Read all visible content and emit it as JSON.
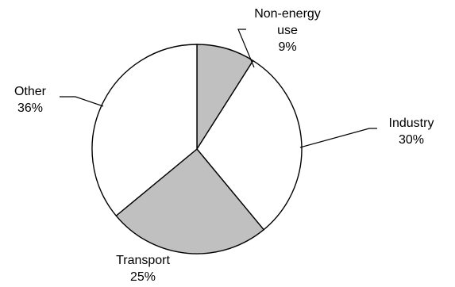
{
  "chart_data": {
    "type": "pie",
    "slices": [
      {
        "label_lines": [
          "Non-energy",
          "use"
        ],
        "value": 9,
        "value_label": "9%",
        "color": "#c0c0c0"
      },
      {
        "label_lines": [
          "Industry"
        ],
        "value": 30,
        "value_label": "30%",
        "color": "#ffffff"
      },
      {
        "label_lines": [
          "Transport"
        ],
        "value": 25,
        "value_label": "25%",
        "color": "#c0c0c0"
      },
      {
        "label_lines": [
          "Other"
        ],
        "value": 36,
        "value_label": "36%",
        "color": "#ffffff"
      }
    ],
    "start_angle_deg": 0,
    "direction": "clockwise",
    "legend": "none",
    "grid": false
  }
}
